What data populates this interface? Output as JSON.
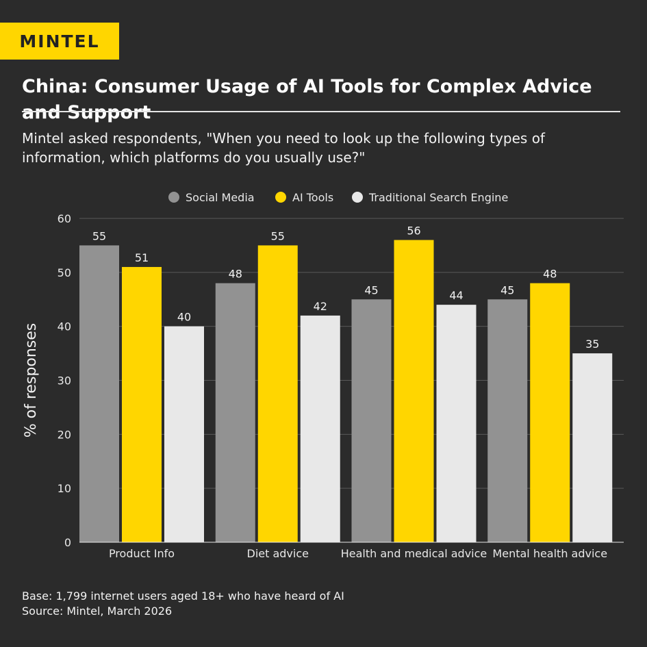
{
  "brand": {
    "logo_text": "MINTEL",
    "accent": "#ffd600"
  },
  "header": {
    "title": "China: Consumer Usage of AI Tools for Complex Advice and Support",
    "subtitle": "Mintel asked respondents, \"When you need to look up the following types of information, which platforms do you usually use?\""
  },
  "chart_data": {
    "type": "bar",
    "title": "",
    "xlabel": "",
    "ylabel": "% of responses",
    "ylim": [
      0,
      60
    ],
    "yticks": [
      "0",
      "10",
      "20",
      "30",
      "40",
      "50",
      "60"
    ],
    "grid": true,
    "legend": "top",
    "categories": [
      "Product Info",
      "Diet advice",
      "Health and medical advice",
      "Mental health advice"
    ],
    "series": [
      {
        "name": "Social Media",
        "color": "#929292",
        "values": [
          55,
          48,
          45,
          45
        ]
      },
      {
        "name": "AI Tools",
        "color": "#ffd600",
        "values": [
          51,
          55,
          56,
          48
        ]
      },
      {
        "name": "Traditional Search Engine",
        "color": "#e8e8e8",
        "values": [
          40,
          42,
          44,
          35
        ]
      }
    ]
  },
  "footer": {
    "base": "Base: 1,799 internet users aged 18+ who have heard of AI",
    "source": "Source: Mintel, March 2026"
  }
}
